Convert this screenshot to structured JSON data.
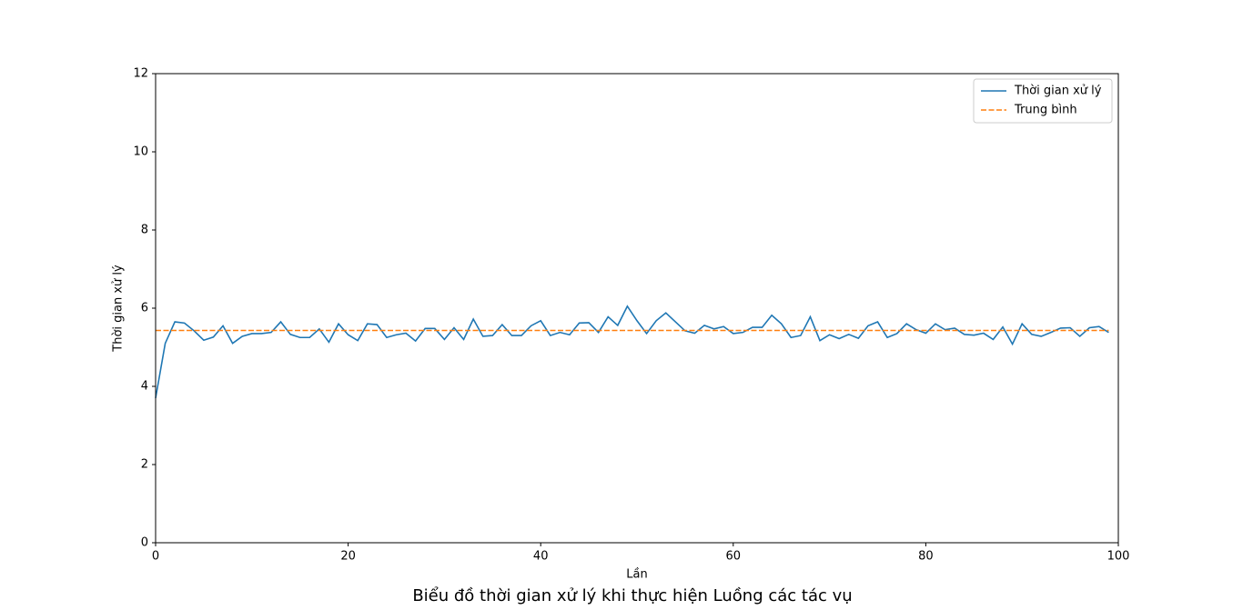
{
  "chart_data": {
    "type": "line",
    "title": "Biểu đồ thời gian xử lý khi thực hiện Luồng các tác vụ",
    "x_label": "Lần",
    "y_label": "Thời gian xử lý",
    "xlim": [
      0,
      100
    ],
    "ylim": [
      0,
      12
    ],
    "xticks": [
      0,
      20,
      40,
      60,
      80,
      100
    ],
    "yticks": [
      0,
      2,
      4,
      6,
      8,
      10,
      12
    ],
    "grid": false,
    "legend": "upper right",
    "series": [
      {
        "name": "Thời gian xử lý",
        "color": "#1f77b4",
        "dashed": false,
        "x": [
          0,
          1,
          2,
          3,
          4,
          5,
          6,
          7,
          8,
          9,
          10,
          11,
          12,
          13,
          14,
          15,
          16,
          17,
          18,
          19,
          20,
          21,
          22,
          23,
          24,
          25,
          26,
          27,
          28,
          29,
          30,
          31,
          32,
          33,
          34,
          35,
          36,
          37,
          38,
          39,
          40,
          41,
          42,
          43,
          44,
          45,
          46,
          47,
          48,
          49,
          50,
          51,
          52,
          53,
          54,
          55,
          56,
          57,
          58,
          59,
          60,
          61,
          62,
          63,
          64,
          65,
          66,
          67,
          68,
          69,
          70,
          71,
          72,
          73,
          74,
          75,
          76,
          77,
          78,
          79,
          80,
          81,
          82,
          83,
          84,
          85,
          86,
          87,
          88,
          89,
          90,
          91,
          92,
          93,
          94,
          95,
          96,
          97,
          98,
          99
        ],
        "values": [
          3.7,
          5.1,
          5.65,
          5.62,
          5.42,
          5.18,
          5.26,
          5.55,
          5.1,
          5.28,
          5.35,
          5.35,
          5.38,
          5.65,
          5.33,
          5.25,
          5.25,
          5.47,
          5.13,
          5.6,
          5.32,
          5.17,
          5.6,
          5.58,
          5.25,
          5.32,
          5.36,
          5.16,
          5.48,
          5.48,
          5.2,
          5.5,
          5.2,
          5.72,
          5.28,
          5.3,
          5.58,
          5.3,
          5.3,
          5.55,
          5.68,
          5.3,
          5.38,
          5.32,
          5.62,
          5.63,
          5.38,
          5.78,
          5.56,
          6.05,
          5.68,
          5.35,
          5.68,
          5.88,
          5.65,
          5.42,
          5.36,
          5.56,
          5.47,
          5.53,
          5.35,
          5.38,
          5.51,
          5.51,
          5.82,
          5.6,
          5.25,
          5.3,
          5.78,
          5.17,
          5.32,
          5.22,
          5.33,
          5.23,
          5.55,
          5.65,
          5.25,
          5.35,
          5.6,
          5.45,
          5.36,
          5.6,
          5.45,
          5.49,
          5.33,
          5.31,
          5.36,
          5.2,
          5.52,
          5.08,
          5.6,
          5.33,
          5.28,
          5.38,
          5.49,
          5.5,
          5.28,
          5.5,
          5.53,
          5.38
        ]
      },
      {
        "name": "Trung bình",
        "color": "#ff7f0e",
        "dashed": true,
        "x": [
          0,
          99
        ],
        "values": [
          5.43,
          5.43
        ]
      }
    ]
  }
}
